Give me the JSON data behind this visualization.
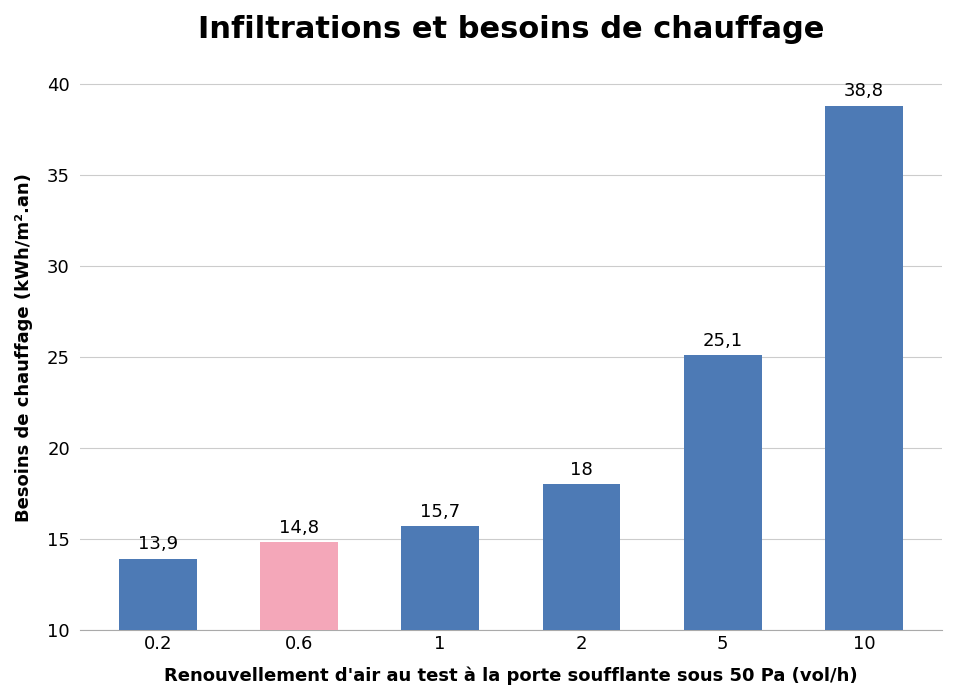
{
  "title": "Infiltrations et besoins de chauffage",
  "xlabel": "Renouvellement d'air au test à la porte soufflante sous 50 Pa (vol/h)",
  "ylabel": "Besoins de chauffage (kWh/m².an)",
  "categories": [
    "0.2",
    "0.6",
    "1",
    "2",
    "5",
    "10"
  ],
  "values": [
    13.9,
    14.8,
    15.7,
    18,
    25.1,
    38.8
  ],
  "bar_colors": [
    "#4d7ab5",
    "#f4a7b9",
    "#4d7ab5",
    "#4d7ab5",
    "#4d7ab5",
    "#4d7ab5"
  ],
  "ylim": [
    10,
    41
  ],
  "yticks": [
    10,
    15,
    20,
    25,
    30,
    35,
    40
  ],
  "label_values": [
    "13,9",
    "14,8",
    "15,7",
    "18",
    "25,1",
    "38,8"
  ],
  "title_fontsize": 22,
  "axis_label_fontsize": 13,
  "tick_fontsize": 13,
  "bar_label_fontsize": 13,
  "background_color": "#ffffff",
  "grid_color": "#cccccc",
  "ymin": 10
}
